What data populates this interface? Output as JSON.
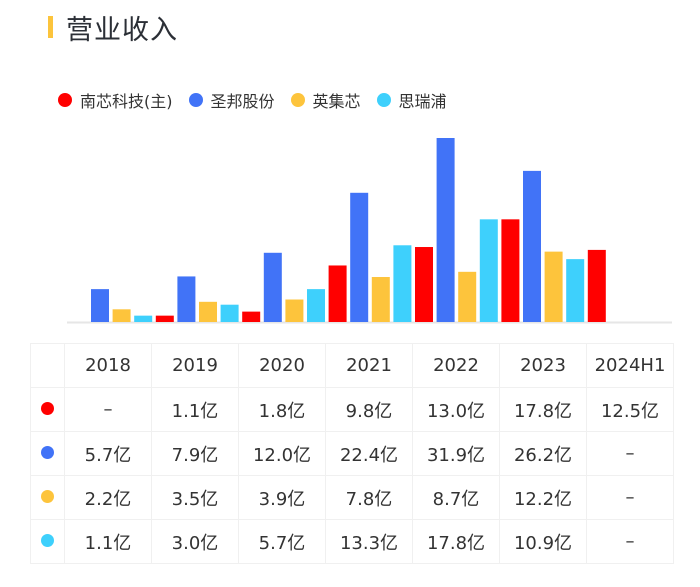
{
  "header": {
    "title": "营业收入"
  },
  "chart_data": {
    "type": "bar",
    "categories": [
      "2018",
      "2019",
      "2020",
      "2021",
      "2022",
      "2023",
      "2024H1"
    ],
    "unit": "亿",
    "series": [
      {
        "name": "南芯科技(主)",
        "color": "#ff0000",
        "values": [
          null,
          1.1,
          1.8,
          9.8,
          13.0,
          17.8,
          12.5
        ]
      },
      {
        "name": "圣邦股份",
        "color": "#4173f7",
        "values": [
          5.7,
          7.9,
          12.0,
          22.4,
          31.9,
          26.2,
          null
        ]
      },
      {
        "name": "英集芯",
        "color": "#fdc43c",
        "values": [
          2.2,
          3.5,
          3.9,
          7.8,
          8.7,
          12.2,
          null
        ]
      },
      {
        "name": "思瑞浦",
        "color": "#3ed0fc",
        "values": [
          1.1,
          3.0,
          5.7,
          13.3,
          17.8,
          10.9,
          null
        ]
      }
    ],
    "legend": "top-left",
    "grid": false
  },
  "table": {
    "headers": [
      "2018",
      "2019",
      "2020",
      "2021",
      "2022",
      "2023",
      "2024H1"
    ],
    "rows": [
      [
        "–",
        "1.1亿",
        "1.8亿",
        "9.8亿",
        "13.0亿",
        "17.8亿",
        "12.5亿"
      ],
      [
        "5.7亿",
        "7.9亿",
        "12.0亿",
        "22.4亿",
        "31.9亿",
        "26.2亿",
        "–"
      ],
      [
        "2.2亿",
        "3.5亿",
        "3.9亿",
        "7.8亿",
        "8.7亿",
        "12.2亿",
        "–"
      ],
      [
        "1.1亿",
        "3.0亿",
        "5.7亿",
        "13.3亿",
        "17.8亿",
        "10.9亿",
        "–"
      ]
    ]
  }
}
